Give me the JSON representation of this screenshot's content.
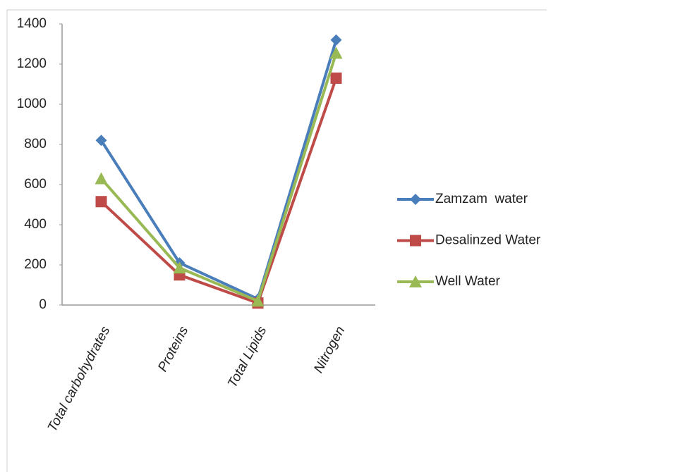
{
  "chart_data": {
    "type": "line",
    "categories": [
      "Total carbohydrates",
      "Proteins",
      "Total Lipids",
      "Nitrogen"
    ],
    "series": [
      {
        "name": "Zamzam  water",
        "color": "#4a7ebb",
        "marker": "diamond",
        "values": [
          820,
          210,
          30,
          1320
        ]
      },
      {
        "name": "Desalinzed Water",
        "color": "#be4b48",
        "marker": "square",
        "values": [
          515,
          150,
          10,
          1130
        ]
      },
      {
        "name": "Well Water",
        "color": "#98b954",
        "marker": "triangle",
        "values": [
          630,
          185,
          20,
          1255
        ]
      }
    ],
    "ylim": [
      0,
      1400
    ],
    "yticks": [
      0,
      200,
      400,
      600,
      800,
      1000,
      1200,
      1400
    ],
    "grid": false,
    "legend": "right"
  }
}
